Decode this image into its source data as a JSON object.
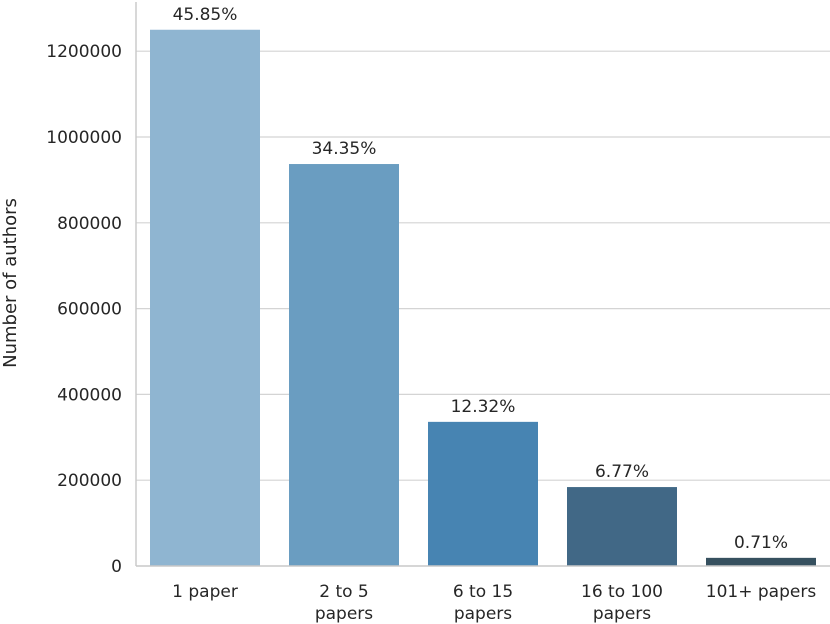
{
  "chart_data": {
    "type": "bar",
    "ylabel": "Number of authors",
    "ylim": [
      0,
      1300000
    ],
    "yticks": [
      "0",
      "200000",
      "400000",
      "600000",
      "800000",
      "1000000",
      "1200000"
    ],
    "grid": "horizontal",
    "categories": [
      [
        "1 paper"
      ],
      [
        "2 to 5",
        "papers"
      ],
      [
        "6 to 15",
        "papers"
      ],
      [
        "16 to 100",
        "papers"
      ],
      [
        "101+ papers"
      ]
    ],
    "values": [
      1250000,
      937000,
      336000,
      184000,
      19000
    ],
    "labels": [
      "45.85%",
      "34.35%",
      "12.32%",
      "6.77%",
      "0.71%"
    ],
    "colors": [
      "#8fb5d1",
      "#6a9dc1",
      "#4784b2",
      "#416886",
      "#36505f"
    ]
  }
}
